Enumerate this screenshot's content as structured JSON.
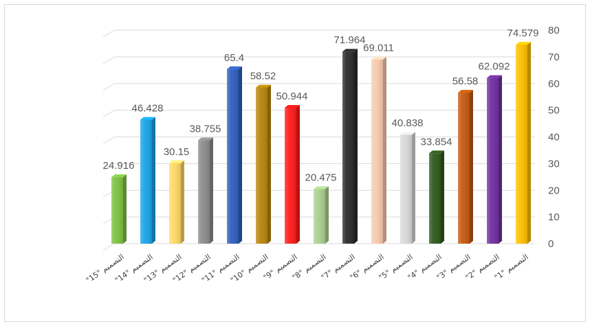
{
  "chart_data": {
    "type": "bar",
    "title": "",
    "xlabel": "",
    "ylabel": "",
    "ylim": [
      0,
      80
    ],
    "yticks": [
      0,
      10,
      20,
      30,
      40,
      50,
      60,
      70,
      80
    ],
    "y_axis_side": "right",
    "grid": true,
    "legend": "none",
    "categories": [
      "\"15\" التصميم",
      "\"14\" التصميم",
      "\"13\" التصميم",
      "\"12\" التصميم",
      "\"11\" التصميم",
      "\"10\" التصميم",
      "\"9\" التصميم",
      "\"8\" التصميم",
      "\"7\" التصميم",
      "\"6\" التصميم",
      "\"5\" التصميم",
      "\"4\" التصميم",
      "\"3\" التصميم",
      "\"2\" التصميم",
      "\"1\" التصميم"
    ],
    "values": [
      24.916,
      46.428,
      30.15,
      38.755,
      65.4,
      58.52,
      50.944,
      20.475,
      71.964,
      69.011,
      40.838,
      33.854,
      56.58,
      62.092,
      74.579
    ],
    "value_labels": [
      "24.916",
      "46.428",
      "30.15",
      "38.755",
      "65.4",
      "58.52",
      "50.944",
      "20.475",
      "71.964",
      "69.011",
      "40.838",
      "33.854",
      "56.58",
      "62.092",
      "74.579"
    ],
    "colors": [
      "#7cc143",
      "#1aa3e8",
      "#ffd966",
      "#8c8c8c",
      "#2e5fbf",
      "#b8860b",
      "#ff1a1a",
      "#a9d18e",
      "#2b2b2b",
      "#f8cbad",
      "#d9d9d9",
      "#2e5a1c",
      "#c65911",
      "#7030a0",
      "#ffc000"
    ]
  }
}
